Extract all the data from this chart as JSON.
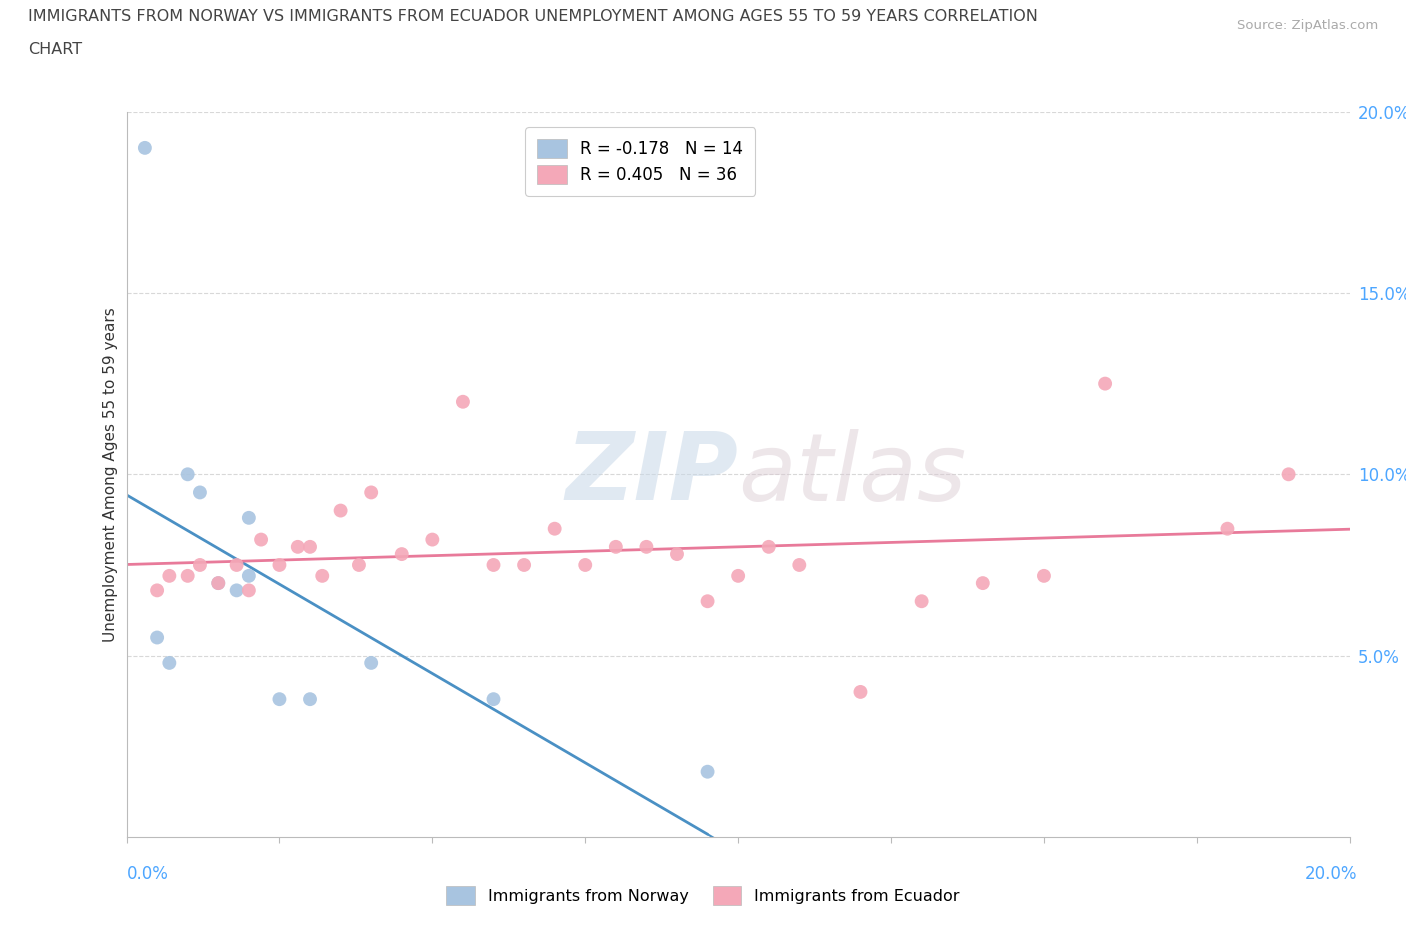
{
  "title_line1": "IMMIGRANTS FROM NORWAY VS IMMIGRANTS FROM ECUADOR UNEMPLOYMENT AMONG AGES 55 TO 59 YEARS CORRELATION",
  "title_line2": "CHART",
  "source": "Source: ZipAtlas.com",
  "ylabel": "Unemployment Among Ages 55 to 59 years",
  "xlim": [
    0.0,
    0.2
  ],
  "ylim": [
    0.0,
    0.2
  ],
  "norway_R": -0.178,
  "norway_N": 14,
  "ecuador_R": 0.405,
  "ecuador_N": 36,
  "norway_color": "#a8c4e0",
  "ecuador_color": "#f4a8b8",
  "norway_line_color": "#4a90c4",
  "ecuador_line_color": "#e87a9a",
  "norway_scatter_x": [
    0.003,
    0.005,
    0.007,
    0.01,
    0.012,
    0.015,
    0.018,
    0.02,
    0.02,
    0.025,
    0.03,
    0.04,
    0.06,
    0.095
  ],
  "norway_scatter_y": [
    0.19,
    0.055,
    0.048,
    0.1,
    0.095,
    0.07,
    0.068,
    0.088,
    0.072,
    0.038,
    0.038,
    0.048,
    0.038,
    0.018
  ],
  "ecuador_scatter_x": [
    0.005,
    0.007,
    0.01,
    0.012,
    0.015,
    0.018,
    0.02,
    0.022,
    0.025,
    0.028,
    0.03,
    0.032,
    0.035,
    0.038,
    0.04,
    0.045,
    0.05,
    0.055,
    0.06,
    0.065,
    0.07,
    0.075,
    0.08,
    0.085,
    0.09,
    0.095,
    0.1,
    0.105,
    0.11,
    0.12,
    0.13,
    0.14,
    0.15,
    0.16,
    0.18,
    0.19
  ],
  "ecuador_scatter_y": [
    0.068,
    0.072,
    0.072,
    0.075,
    0.07,
    0.075,
    0.068,
    0.082,
    0.075,
    0.08,
    0.08,
    0.072,
    0.09,
    0.075,
    0.095,
    0.078,
    0.082,
    0.12,
    0.075,
    0.075,
    0.085,
    0.075,
    0.08,
    0.08,
    0.078,
    0.065,
    0.072,
    0.08,
    0.075,
    0.04,
    0.065,
    0.07,
    0.072,
    0.125,
    0.085,
    0.1
  ],
  "watermark_zip": "ZIP",
  "watermark_atlas": "atlas",
  "background_color": "#ffffff",
  "grid_color": "#d8d8d8"
}
